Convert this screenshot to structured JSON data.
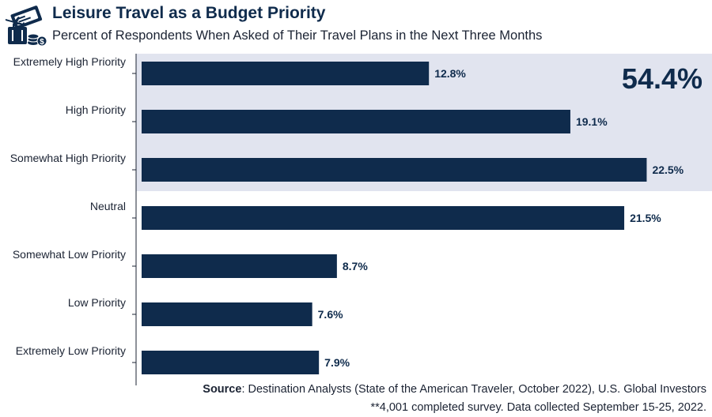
{
  "header": {
    "title": "Leisure Travel as a Budget Priority",
    "subtitle": "Percent of Respondents When Asked of Their Travel Plans in the Next Three Months"
  },
  "logo": {
    "icon": "travel-budget-icon"
  },
  "chart_data": {
    "type": "bar",
    "orientation": "horizontal",
    "categories": [
      "Extremely High Priority",
      "High Priority",
      "Somewhat High Priority",
      "Neutral",
      "Somewhat Low Priority",
      "Low Priority",
      "Extremely Low Priority"
    ],
    "values": [
      12.8,
      19.1,
      22.5,
      21.5,
      8.7,
      7.6,
      7.9
    ],
    "value_labels": [
      "12.8%",
      "19.1%",
      "22.5%",
      "21.5%",
      "8.7%",
      "7.6%",
      "7.9%"
    ],
    "xlim": [
      0,
      24
    ],
    "bar_color": "#0f2b4c",
    "highlight": {
      "categories": [
        "Extremely High Priority",
        "High Priority",
        "Somewhat High Priority"
      ],
      "label": "54.4%",
      "color": "#e1e4ef"
    },
    "grid": false,
    "legend": "none"
  },
  "footer": {
    "source_label": "Source",
    "source_text": ": Destination Analysts (State of the American Traveler, October 2022), U.S. Global Investors",
    "note": "**4,001 completed survey. Data collected September 15-25, 2022."
  }
}
